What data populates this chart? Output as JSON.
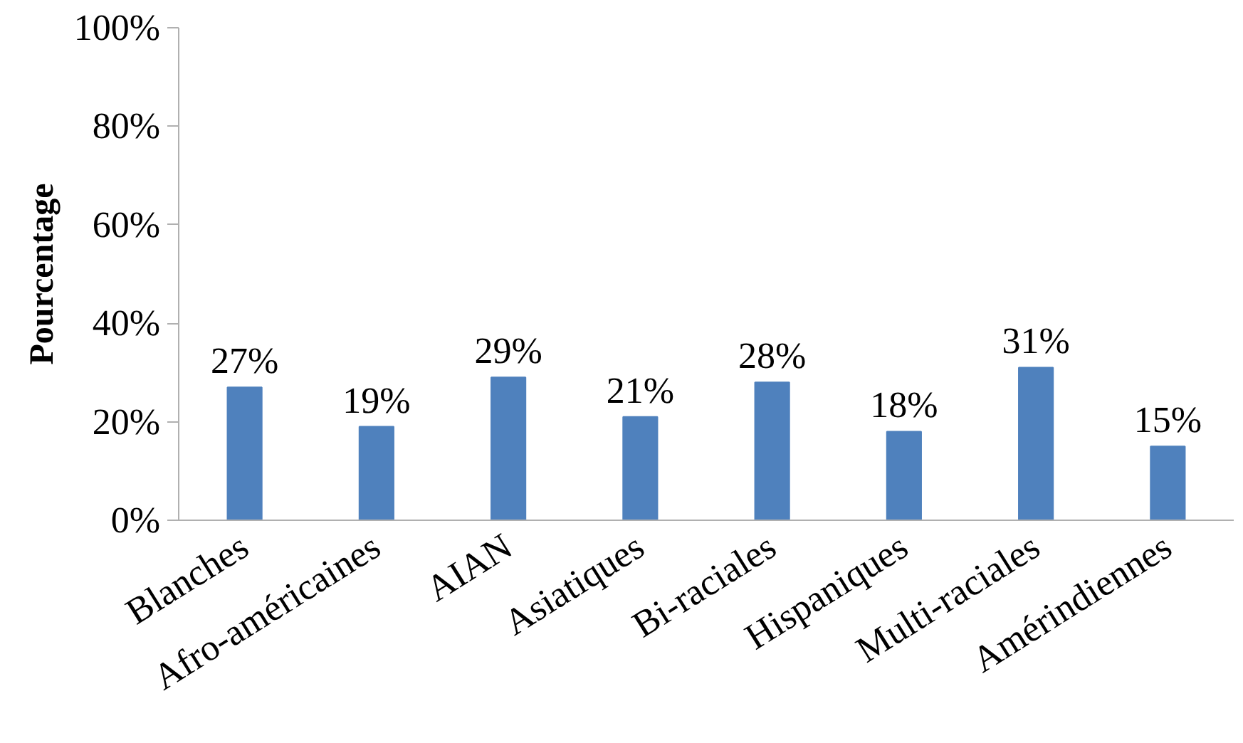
{
  "chart_data": {
    "type": "bar",
    "ylabel": "Pourcentage",
    "categories": [
      "Blanches",
      "Afro-américaines",
      "AIAN",
      "Asiatiques",
      "Bi-raciales",
      "Hispaniques",
      "Multi-raciales",
      "Amérindiennes"
    ],
    "values": [
      27,
      19,
      29,
      21,
      28,
      18,
      31,
      15
    ],
    "value_labels": [
      "27%",
      "19%",
      "29%",
      "21%",
      "28%",
      "18%",
      "31%",
      "15%"
    ],
    "color": "#4f81bd",
    "ylim": [
      0,
      100
    ],
    "yticks": [
      {
        "value": 0,
        "label": "0%"
      },
      {
        "value": 20,
        "label": "20%"
      },
      {
        "value": 40,
        "label": "40%"
      },
      {
        "value": 60,
        "label": "60%"
      },
      {
        "value": 80,
        "label": "80%"
      },
      {
        "value": 100,
        "label": "100%"
      }
    ],
    "grid": false
  }
}
